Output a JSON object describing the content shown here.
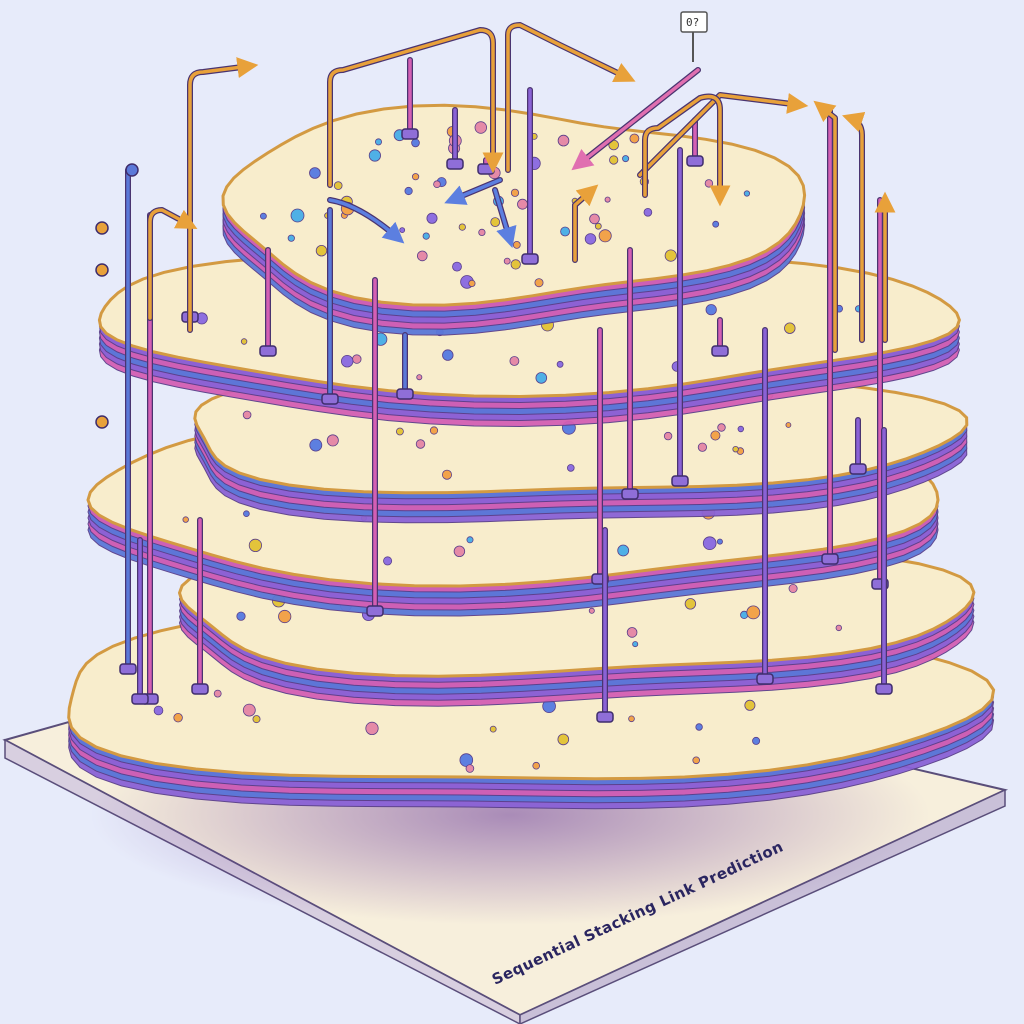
{
  "caption": "Sequential Stacking Link Prediction",
  "top_tag": "0?",
  "colors": {
    "background": "#e7ebfa",
    "base_plate": "#f7efdc",
    "layer_fill": "#f8edcc",
    "outline": "#d39a42",
    "edge_purple": "#8a62d6",
    "edge_blue": "#5b78d8",
    "edge_pink": "#d45fb4",
    "pin_head": "#8f6ed8",
    "arrow_orange": "#e8a13a",
    "arrow_blue": "#5c7fe0",
    "arrow_pink": "#e06fb0",
    "dot_palette": [
      "#e58aa7",
      "#4fb0e6",
      "#f2a34a",
      "#8e6fe0",
      "#e3c43b",
      "#5d7fe0"
    ]
  }
}
